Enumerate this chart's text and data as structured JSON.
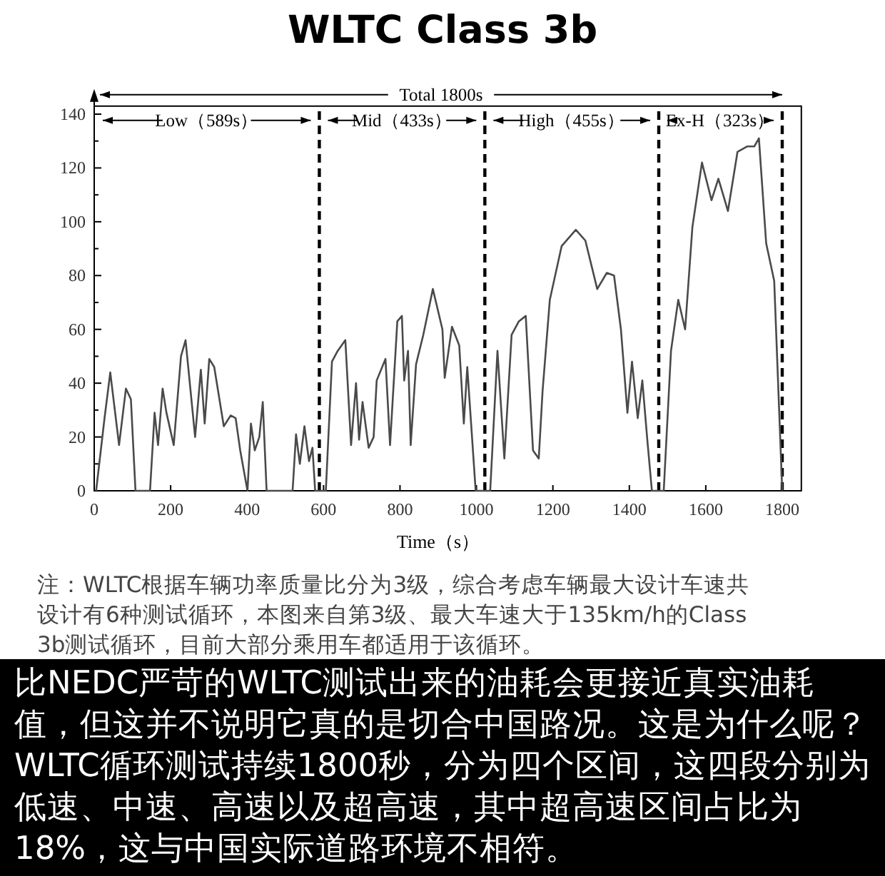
{
  "chart_data": {
    "type": "line",
    "title": "WLTC Class 3b",
    "xlabel": "Time（s）",
    "color": "#4a4a4a",
    "line_style": "solid",
    "xlim": [
      0,
      1850
    ],
    "ylim": [
      0,
      143
    ],
    "xticks": [
      0,
      200,
      400,
      600,
      800,
      1000,
      1200,
      1400,
      1600,
      1800
    ],
    "yticks": [
      0,
      20,
      40,
      60,
      80,
      100,
      120,
      140
    ],
    "x": [
      5,
      27,
      42,
      65,
      83,
      96,
      108,
      146,
      158,
      167,
      179,
      189,
      208,
      227,
      239,
      264,
      279,
      289,
      301,
      314,
      339,
      357,
      370,
      382,
      401,
      410,
      420,
      432,
      441,
      451,
      519,
      528,
      538,
      550,
      562,
      571,
      578,
      606,
      622,
      637,
      657,
      672,
      685,
      693,
      702,
      718,
      731,
      739,
      762,
      774,
      793,
      805,
      811,
      821,
      828,
      842,
      861,
      886,
      911,
      917,
      936,
      955,
      967,
      976,
      998,
      1036,
      1055,
      1073,
      1092,
      1111,
      1129,
      1148,
      1163,
      1173,
      1192,
      1223,
      1260,
      1285,
      1316,
      1341,
      1360,
      1378,
      1395,
      1407,
      1422,
      1434,
      1447,
      1459,
      1490,
      1509,
      1528,
      1546,
      1565,
      1590,
      1615,
      1633,
      1658,
      1683,
      1708,
      1727,
      1739,
      1758,
      1779,
      1800
    ],
    "values": [
      0,
      27,
      44,
      17,
      38,
      34,
      0,
      0,
      29,
      17,
      38,
      29,
      17,
      50,
      56,
      20,
      45,
      25,
      49,
      46,
      24,
      28,
      27,
      15,
      0,
      25,
      15,
      20,
      33,
      0,
      0,
      21,
      10,
      24,
      11,
      16,
      0,
      0,
      48,
      52,
      56,
      17,
      40,
      19,
      33,
      16,
      20,
      41,
      49,
      17,
      63,
      65,
      41,
      52,
      17,
      47,
      58,
      75,
      60,
      42,
      61,
      54,
      25,
      46,
      0,
      0,
      52,
      12,
      58,
      63,
      65,
      15,
      12,
      37,
      71,
      91,
      97,
      93,
      75,
      81,
      80,
      60,
      29,
      48,
      27,
      41,
      19,
      0,
      0,
      52,
      71,
      60,
      98,
      122,
      108,
      116,
      104,
      126,
      128,
      128,
      131,
      92,
      78,
      0
    ],
    "ref_lines": [
      {
        "axis": "x",
        "value": 589,
        "line_style": "dashed",
        "color": "#000000"
      },
      {
        "axis": "x",
        "value": 1022,
        "line_style": "dashed",
        "color": "#000000"
      },
      {
        "axis": "x",
        "value": 1477,
        "line_style": "dashed",
        "color": "#000000"
      },
      {
        "axis": "x",
        "value": 1800,
        "line_style": "dashed",
        "color": "#000000"
      }
    ],
    "annotations": [
      "Total 1800s",
      "Low（589s）",
      "Mid（433s）",
      "High（455s）",
      "Ex-H（323s）",
      "注：WLTC根据车辆功率质量比分为3级，综合考虑车辆最大设计车速共设计有6种测试循环，本图来自第3级、最大车速大于135km/h的Class 3b测试循环，目前大部分乘用车都适用于该循环。",
      "比NEDC严苛的WLTC测试出来的油耗会更接近真实油耗值，但这并不说明它真的是切合中国路况。这是为什么呢？WLTC循环测试持续1800秒，分为四个区间，这四段分别为低速、中速、高速以及超高速，其中超高速区间占比为18%，这与中国实际道路环境不相符。"
    ]
  }
}
